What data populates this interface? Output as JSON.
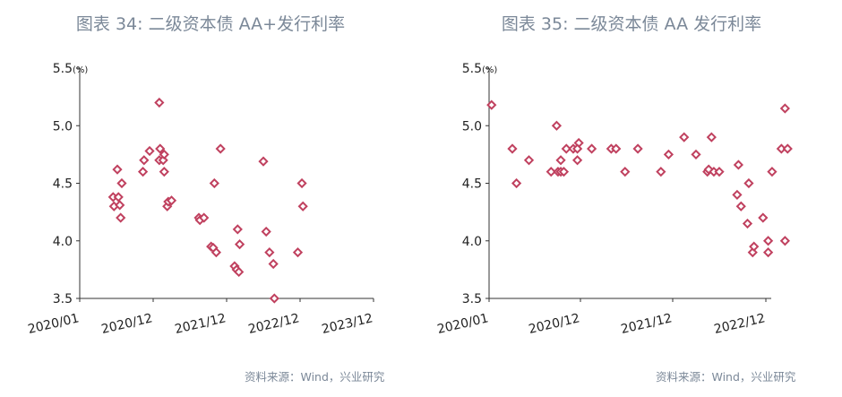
{
  "chart_data": [
    {
      "type": "scatter",
      "title": "图表 34: 二级资本债 AA+发行利率",
      "unit": "(%)",
      "ylim": [
        3.5,
        5.5
      ],
      "yticks": [
        "5.5",
        "5.0",
        "4.5",
        "4.0",
        "3.5"
      ],
      "xlim": [
        "2020-01",
        "2023-12"
      ],
      "xticks": [
        "2020/01",
        "2020/12",
        "2021/12",
        "2022/12",
        "2023/12"
      ],
      "color": "#c0415f",
      "points": [
        {
          "x": "2020-06-01",
          "y": 4.38
        },
        {
          "x": "2020-06-05",
          "y": 4.3
        },
        {
          "x": "2020-06-20",
          "y": 4.62
        },
        {
          "x": "2020-06-25",
          "y": 4.38
        },
        {
          "x": "2020-07-01",
          "y": 4.31
        },
        {
          "x": "2020-07-05",
          "y": 4.2
        },
        {
          "x": "2020-07-10",
          "y": 4.5
        },
        {
          "x": "2020-10-15",
          "y": 4.6
        },
        {
          "x": "2020-10-20",
          "y": 4.7
        },
        {
          "x": "2020-11-15",
          "y": 4.78
        },
        {
          "x": "2021-01-01",
          "y": 4.7
        },
        {
          "x": "2021-01-01",
          "y": 5.2
        },
        {
          "x": "2021-01-05",
          "y": 4.8
        },
        {
          "x": "2021-01-20",
          "y": 4.7
        },
        {
          "x": "2021-01-25",
          "y": 4.75
        },
        {
          "x": "2021-01-25",
          "y": 4.6
        },
        {
          "x": "2021-02-10",
          "y": 4.3
        },
        {
          "x": "2021-02-15",
          "y": 4.34
        },
        {
          "x": "2021-03-01",
          "y": 4.35
        },
        {
          "x": "2021-07-15",
          "y": 4.2
        },
        {
          "x": "2021-07-20",
          "y": 4.18
        },
        {
          "x": "2021-08-10",
          "y": 4.2
        },
        {
          "x": "2021-09-15",
          "y": 3.95
        },
        {
          "x": "2021-09-25",
          "y": 3.94
        },
        {
          "x": "2021-10-01",
          "y": 4.5
        },
        {
          "x": "2021-10-10",
          "y": 3.9
        },
        {
          "x": "2021-11-01",
          "y": 4.8
        },
        {
          "x": "2022-01-10",
          "y": 3.78
        },
        {
          "x": "2022-01-20",
          "y": 3.75
        },
        {
          "x": "2022-01-25",
          "y": 4.1
        },
        {
          "x": "2022-02-01",
          "y": 3.73
        },
        {
          "x": "2022-02-05",
          "y": 3.97
        },
        {
          "x": "2022-06-01",
          "y": 4.69
        },
        {
          "x": "2022-06-15",
          "y": 4.08
        },
        {
          "x": "2022-07-01",
          "y": 3.9
        },
        {
          "x": "2022-07-20",
          "y": 3.8
        },
        {
          "x": "2022-07-25",
          "y": 3.5
        },
        {
          "x": "2022-11-20",
          "y": 3.9
        },
        {
          "x": "2022-12-10",
          "y": 4.5
        },
        {
          "x": "2022-12-15",
          "y": 4.3
        }
      ]
    },
    {
      "type": "scatter",
      "title": "图表 35: 二级资本债 AA 发行利率",
      "unit": "(%)",
      "ylim": [
        3.5,
        5.5
      ],
      "yticks": [
        "5.5",
        "5.0",
        "4.5",
        "4.0",
        "3.5"
      ],
      "xlim": [
        "2020-01",
        "2023-03"
      ],
      "xticks": [
        "2020/01",
        "2020/12",
        "2021/12",
        "2022/12"
      ],
      "color": "#c0415f",
      "points": [
        {
          "x": "2020-01-10",
          "y": 5.18
        },
        {
          "x": "2020-03-25",
          "y": 4.8
        },
        {
          "x": "2020-04-10",
          "y": 4.5
        },
        {
          "x": "2020-05-25",
          "y": 4.7
        },
        {
          "x": "2020-08-15",
          "y": 4.6
        },
        {
          "x": "2020-09-10",
          "y": 4.6
        },
        {
          "x": "2020-09-05",
          "y": 5.0
        },
        {
          "x": "2020-09-20",
          "y": 4.6
        },
        {
          "x": "2020-09-20",
          "y": 4.7
        },
        {
          "x": "2020-10-01",
          "y": 4.6
        },
        {
          "x": "2020-10-10",
          "y": 4.8
        },
        {
          "x": "2020-11-05",
          "y": 4.8
        },
        {
          "x": "2020-11-20",
          "y": 4.7
        },
        {
          "x": "2020-11-25",
          "y": 4.85
        },
        {
          "x": "2020-11-20",
          "y": 4.8
        },
        {
          "x": "2021-01-15",
          "y": 4.8
        },
        {
          "x": "2021-04-01",
          "y": 4.8
        },
        {
          "x": "2021-04-20",
          "y": 4.8
        },
        {
          "x": "2021-05-25",
          "y": 4.6
        },
        {
          "x": "2021-07-15",
          "y": 4.8
        },
        {
          "x": "2021-10-15",
          "y": 4.6
        },
        {
          "x": "2021-11-15",
          "y": 4.75
        },
        {
          "x": "2022-01-15",
          "y": 4.9
        },
        {
          "x": "2022-03-01",
          "y": 4.75
        },
        {
          "x": "2022-04-15",
          "y": 4.6
        },
        {
          "x": "2022-04-20",
          "y": 4.62
        },
        {
          "x": "2022-05-01",
          "y": 4.9
        },
        {
          "x": "2022-05-10",
          "y": 4.6
        },
        {
          "x": "2022-06-01",
          "y": 4.6
        },
        {
          "x": "2022-08-10",
          "y": 4.4
        },
        {
          "x": "2022-08-15",
          "y": 4.66
        },
        {
          "x": "2022-08-25",
          "y": 4.3
        },
        {
          "x": "2022-09-25",
          "y": 4.5
        },
        {
          "x": "2022-09-20",
          "y": 4.15
        },
        {
          "x": "2022-10-10",
          "y": 3.9
        },
        {
          "x": "2022-10-15",
          "y": 3.95
        },
        {
          "x": "2022-11-20",
          "y": 4.2
        },
        {
          "x": "2022-12-10",
          "y": 4.0
        },
        {
          "x": "2022-12-10",
          "y": 3.9
        },
        {
          "x": "2022-12-25",
          "y": 4.6
        },
        {
          "x": "2023-02-01",
          "y": 4.8
        },
        {
          "x": "2023-02-15",
          "y": 5.15
        },
        {
          "x": "2023-02-15",
          "y": 4.0
        },
        {
          "x": "2023-02-25",
          "y": 4.8
        }
      ]
    }
  ],
  "sources": [
    "资料来源：Wind，兴业研究",
    "资料来源：Wind，兴业研究"
  ]
}
